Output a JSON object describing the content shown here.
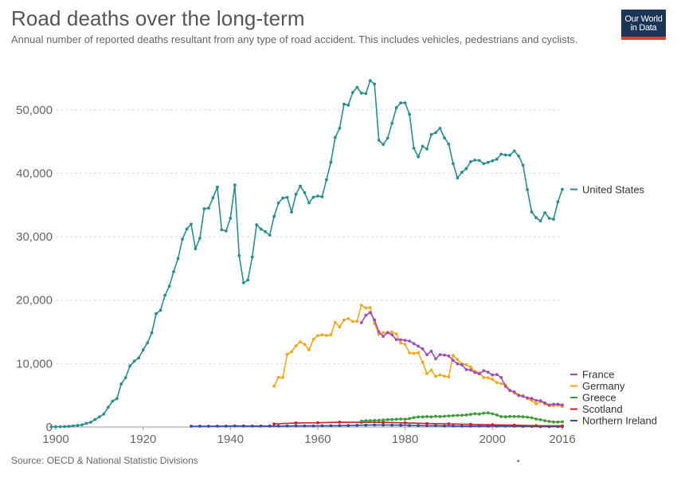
{
  "header": {
    "title": "Road deaths over the long-term",
    "subtitle": "Annual number of reported deaths resultant from any type of road accident. This includes vehicles, pedestrians and cyclists."
  },
  "logo": {
    "line1": "Our World",
    "line2": "in Data",
    "colors": {
      "bg": "#1a3556",
      "bar": "#d7442f"
    }
  },
  "footer": {
    "source": "Source: OECD & National Statistic Divisions",
    "marker": "•"
  },
  "chart_data": {
    "type": "line",
    "xlim": [
      1900,
      2016
    ],
    "ylim": [
      0,
      56000
    ],
    "xticks": [
      1900,
      1920,
      1940,
      1960,
      1980,
      2000,
      2016
    ],
    "xtick_labels": [
      "1900",
      "1920",
      "1940",
      "1960",
      "1980",
      "2000",
      "2016"
    ],
    "yticks": [
      0,
      10000,
      20000,
      30000,
      40000,
      50000
    ],
    "ytick_labels": [
      "0",
      "10,000",
      "20,000",
      "30,000",
      "40,000",
      "50,000"
    ],
    "grid": "horizontal-dashed",
    "legend_position": "right",
    "series": [
      {
        "name": "United States",
        "color": "#2a8d8f",
        "x": [
          1899,
          1900,
          1901,
          1902,
          1903,
          1904,
          1905,
          1906,
          1907,
          1908,
          1909,
          1910,
          1911,
          1912,
          1913,
          1914,
          1915,
          1916,
          1917,
          1918,
          1919,
          1920,
          1921,
          1922,
          1923,
          1924,
          1925,
          1926,
          1927,
          1928,
          1929,
          1930,
          1931,
          1932,
          1933,
          1934,
          1935,
          1936,
          1937,
          1938,
          1939,
          1940,
          1941,
          1942,
          1943,
          1944,
          1945,
          1946,
          1947,
          1948,
          1949,
          1950,
          1951,
          1952,
          1953,
          1954,
          1955,
          1956,
          1957,
          1958,
          1959,
          1960,
          1961,
          1962,
          1963,
          1964,
          1965,
          1966,
          1967,
          1968,
          1969,
          1970,
          1971,
          1972,
          1973,
          1974,
          1975,
          1976,
          1977,
          1978,
          1979,
          1980,
          1981,
          1982,
          1983,
          1984,
          1985,
          1986,
          1987,
          1988,
          1989,
          1990,
          1991,
          1992,
          1993,
          1994,
          1995,
          1996,
          1997,
          1998,
          1999,
          2000,
          2001,
          2002,
          2003,
          2004,
          2005,
          2006,
          2007,
          2008,
          2009,
          2010,
          2011,
          2012,
          2013,
          2014,
          2015,
          2016
        ],
        "y": [
          26,
          36,
          54,
          79,
          117,
          172,
          252,
          338,
          581,
          751,
          1174,
          1599,
          2043,
          3100,
          4076,
          4468,
          6779,
          7766,
          9630,
          10390,
          10896,
          12155,
          13253,
          14859,
          17870,
          18400,
          20771,
          22200,
          24470,
          26557,
          29592,
          31204,
          31963,
          28090,
          29746,
          34404,
          34494,
          36126,
          37819,
          31083,
          30895,
          32914,
          38142,
          27007,
          22727,
          23165,
          26785,
          31874,
          31193,
          30775,
          30246,
          33186,
          35309,
          36088,
          36190,
          33890,
          36688,
          37965,
          36932,
          35331,
          36223,
          36399,
          36285,
          38980,
          41723,
          45645,
          47089,
          50894,
          50724,
          52725,
          53543,
          52627,
          52542,
          54589,
          54052,
          45196,
          44525,
          45523,
          47878,
          50331,
          51093,
          51091,
          49301,
          43945,
          42589,
          44257,
          43825,
          46087,
          46390,
          47087,
          45582,
          44599,
          41508,
          39250,
          40150,
          40716,
          41817,
          42065,
          42013,
          41501,
          41717,
          41945,
          42196,
          43005,
          42884,
          42836,
          43510,
          42708,
          41259,
          37423,
          33883,
          32999,
          32479,
          33782,
          32893,
          32744,
          35485,
          37461
        ],
        "label_y": 37461
      },
      {
        "name": "Germany",
        "color": "#f2a81d",
        "x": [
          1950,
          1951,
          1952,
          1953,
          1954,
          1955,
          1956,
          1957,
          1958,
          1959,
          1960,
          1961,
          1962,
          1963,
          1964,
          1965,
          1966,
          1967,
          1968,
          1969,
          1970,
          1971,
          1972,
          1973,
          1974,
          1975,
          1976,
          1977,
          1978,
          1979,
          1980,
          1981,
          1982,
          1983,
          1984,
          1985,
          1986,
          1987,
          1988,
          1989,
          1990,
          1991,
          1992,
          1993,
          1994,
          1995,
          1996,
          1997,
          1998,
          1999,
          2000,
          2001,
          2002,
          2003,
          2004,
          2005,
          2006,
          2007,
          2008,
          2009,
          2010,
          2011,
          2012,
          2013,
          2014,
          2015,
          2016
        ],
        "y": [
          6428,
          7835,
          7800,
          11449,
          11875,
          12791,
          13427,
          13004,
          12169,
          13822,
          14406,
          14543,
          14445,
          14513,
          16494,
          15753,
          16868,
          17084,
          16636,
          16646,
          19193,
          18753,
          18811,
          16302,
          14614,
          14870,
          14820,
          14978,
          14662,
          13222,
          13041,
          11674,
          11608,
          11732,
          10199,
          8400,
          8948,
          7967,
          8213,
          7995,
          7906,
          11300,
          10631,
          9949,
          9814,
          9454,
          8758,
          8549,
          7792,
          7772,
          7503,
          6977,
          6842,
          6613,
          5842,
          5361,
          5091,
          4949,
          4477,
          4152,
          3648,
          4009,
          3600,
          3339,
          3377,
          3459,
          3206
        ],
        "label_y": 3206
      },
      {
        "name": "France",
        "color": "#a44cb5",
        "x": [
          1970,
          1971,
          1972,
          1973,
          1974,
          1975,
          1976,
          1977,
          1978,
          1979,
          1980,
          1981,
          1982,
          1983,
          1984,
          1985,
          1986,
          1987,
          1988,
          1989,
          1990,
          1991,
          1992,
          1993,
          1994,
          1995,
          1996,
          1997,
          1998,
          1999,
          2000,
          2001,
          2002,
          2003,
          2004,
          2005,
          2006,
          2007,
          2008,
          2009,
          2010,
          2011,
          2012,
          2013,
          2014,
          2015,
          2016
        ],
        "y": [
          16445,
          17600,
          18034,
          16861,
          14981,
          14288,
          14891,
          14524,
          13778,
          13750,
          13672,
          13550,
          13136,
          12742,
          12320,
          11387,
          11947,
          10742,
          11407,
          11334,
          11204,
          10491,
          9952,
          9811,
          9056,
          8992,
          8586,
          8380,
          8875,
          8643,
          8193,
          8272,
          7797,
          6399,
          5742,
          5543,
          4942,
          4838,
          4592,
          4511,
          4193,
          4162,
          3808,
          3464,
          3595,
          3596,
          3477
        ],
        "label_y": 3600
      },
      {
        "name": "Greece",
        "color": "#3a9d3a",
        "x": [
          1970,
          1971,
          1972,
          1973,
          1974,
          1975,
          1976,
          1977,
          1978,
          1979,
          1980,
          1981,
          1982,
          1983,
          1984,
          1985,
          1986,
          1987,
          1988,
          1989,
          1990,
          1991,
          1992,
          1993,
          1994,
          1995,
          1996,
          1997,
          1998,
          1999,
          2000,
          2001,
          2002,
          2003,
          2004,
          2005,
          2006,
          2007,
          2008,
          2009,
          2010,
          2011,
          2012,
          2013,
          2014,
          2015,
          2016
        ],
        "y": [
          931,
          980,
          1010,
          1043,
          1060,
          1105,
          1150,
          1180,
          1220,
          1250,
          1225,
          1330,
          1500,
          1580,
          1600,
          1650,
          1600,
          1700,
          1650,
          1700,
          1750,
          1800,
          1830,
          1850,
          1890,
          2000,
          2100,
          2050,
          2170,
          2220,
          2080,
          1900,
          1634,
          1605,
          1670,
          1658,
          1657,
          1612,
          1553,
          1456,
          1258,
          1141,
          988,
          879,
          795,
          793,
          824
        ],
        "label_y": 800
      },
      {
        "name": "Scotland",
        "color": "#c9212b",
        "x": [
          1950,
          1955,
          1960,
          1965,
          1970,
          1975,
          1980,
          1985,
          1990,
          1995,
          2000,
          2005,
          2010,
          2016
        ],
        "y": [
          480,
          640,
          660,
          770,
          740,
          730,
          650,
          540,
          500,
          410,
          350,
          286,
          208,
          191
        ],
        "label_y": 240
      },
      {
        "name": "Northern Ireland",
        "color": "#2f4f9f",
        "x": [
          1931,
          1933,
          1935,
          1937,
          1939,
          1941,
          1943,
          1945,
          1947,
          1949,
          1951,
          1953,
          1955,
          1957,
          1959,
          1961,
          1963,
          1965,
          1967,
          1969,
          1971,
          1973,
          1975,
          1977,
          1979,
          1981,
          1983,
          1985,
          1987,
          1989,
          1991,
          1993,
          1995,
          1997,
          1999,
          2001,
          2003,
          2005,
          2007,
          2009,
          2011,
          2013,
          2015,
          2016
        ],
        "y": [
          120,
          125,
          130,
          135,
          140,
          180,
          165,
          155,
          150,
          145,
          150,
          160,
          170,
          175,
          180,
          190,
          200,
          210,
          230,
          260,
          300,
          330,
          310,
          300,
          290,
          250,
          230,
          190,
          210,
          180,
          180,
          150,
          140,
          150,
          140,
          148,
          150,
          135,
          113,
          115,
          59,
          57,
          74,
          68
        ],
        "label_y": 30
      }
    ]
  }
}
